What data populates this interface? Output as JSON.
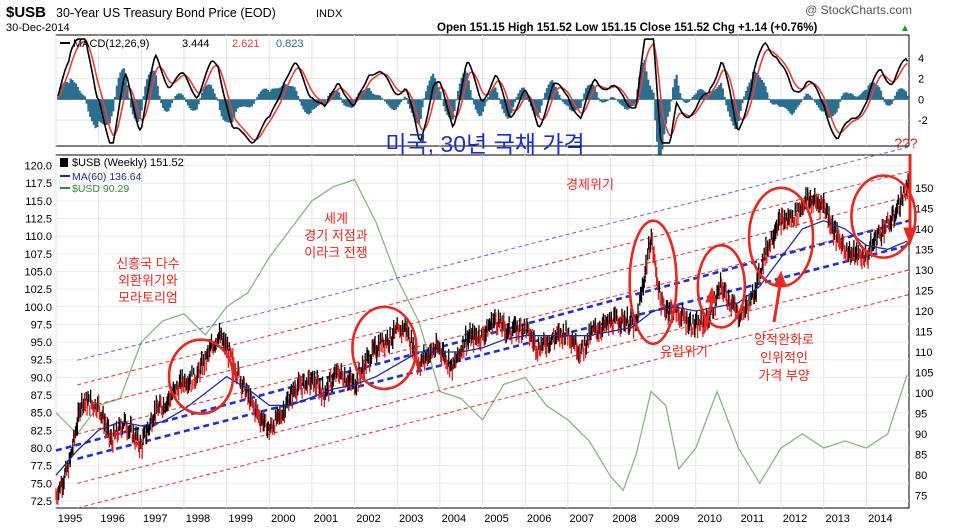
{
  "header": {
    "symbol": "$USB",
    "name": "30-Year US Treasury Bond Price (EOD)",
    "exchange": "INDX",
    "date": "30-Dec-2014",
    "watermark": "@ StockCharts.com",
    "quote": "Open 151.15  High 151.52  Low 151.15  Close 151.52  Chg +1.14 (+0.76%)",
    "quote_arrow": "▲"
  },
  "macd": {
    "label": "MACD(12,26,9)",
    "v1": "3.444",
    "v2": "2.621",
    "v3": "0.823",
    "ticks": [
      "4",
      "2",
      "0",
      "-2"
    ],
    "tick_values": [
      4,
      2,
      0,
      -2
    ],
    "color_macd": "#000000",
    "color_signal": "#e8403c",
    "color_hist": "#2c6e8f"
  },
  "price_legend": {
    "l1": "$USB (Weekly) 151.52",
    "l2": "MA(60) 136.64",
    "l3": "$USD 90.29"
  },
  "chart_data": {
    "type": "line",
    "title": "",
    "x_range": [
      1995.0,
      2015.0
    ],
    "x_ticks": [
      "1995",
      "1996",
      "1997",
      "1998",
      "1999",
      "2000",
      "2001",
      "2002",
      "2003",
      "2004",
      "2005",
      "2006",
      "2007",
      "2008",
      "2009",
      "2010",
      "2011",
      "2012",
      "2013",
      "2014"
    ],
    "x_tick_values": [
      1995,
      1996,
      1997,
      1998,
      1999,
      2000,
      2001,
      2002,
      2003,
      2004,
      2005,
      2006,
      2007,
      2008,
      2009,
      2010,
      2011,
      2012,
      2013,
      2014
    ],
    "left_axis": {
      "range": [
        71.5,
        121.5
      ],
      "ticks": [
        "120.0",
        "117.5",
        "115.0",
        "112.5",
        "110.0",
        "107.5",
        "105.0",
        "102.5",
        "100.0",
        "97.5",
        "95.0",
        "92.5",
        "90.0",
        "87.5",
        "85.0",
        "82.5",
        "80.0",
        "77.5",
        "75.0",
        "72.5"
      ],
      "tick_values": [
        120,
        117.5,
        115,
        112.5,
        110,
        107.5,
        105,
        102.5,
        100,
        97.5,
        95,
        92.5,
        90,
        87.5,
        85,
        82.5,
        80,
        77.5,
        75,
        72.5
      ]
    },
    "right_axis": {
      "range": [
        72,
        158
      ],
      "ticks": [
        "150",
        "145",
        "140",
        "135",
        "130",
        "125",
        "120",
        "115",
        "110",
        "105",
        "100",
        "95",
        "90",
        "85",
        "80",
        "75"
      ],
      "tick_values": [
        150,
        145,
        140,
        135,
        130,
        125,
        120,
        115,
        110,
        105,
        100,
        95,
        90,
        85,
        80,
        75
      ]
    },
    "series": [
      {
        "key": "usb",
        "axis": "right",
        "color": "#000000",
        "x": [
          1995.0,
          1995.3,
          1995.6,
          1996.0,
          1996.3,
          1996.6,
          1997.0,
          1997.3,
          1997.6,
          1998.0,
          1998.3,
          1998.6,
          1998.8,
          1999.0,
          1999.3,
          1999.6,
          2000.0,
          2000.3,
          2000.6,
          2001.0,
          2001.3,
          2001.6,
          2002.0,
          2002.3,
          2002.6,
          2002.9,
          2003.2,
          2003.5,
          2003.8,
          2004.0,
          2004.3,
          2004.6,
          2005.0,
          2005.3,
          2005.6,
          2006.0,
          2006.3,
          2006.6,
          2007.0,
          2007.3,
          2007.6,
          2008.0,
          2008.3,
          2008.6,
          2008.95,
          2009.2,
          2009.5,
          2010.0,
          2010.3,
          2010.6,
          2011.0,
          2011.3,
          2011.6,
          2011.9,
          2012.3,
          2012.6,
          2013.0,
          2013.3,
          2013.6,
          2014.0,
          2014.3,
          2014.6,
          2014.95
        ],
        "y": [
          75,
          82,
          98,
          97,
          88,
          93,
          87,
          95,
          98,
          103,
          104,
          110,
          114,
          111,
          104,
          97,
          91,
          95,
          101,
          103,
          100,
          105,
          102,
          108,
          112,
          114,
          116,
          107,
          110,
          111,
          106,
          113,
          114,
          118,
          115,
          116,
          111,
          113,
          115,
          110,
          115,
          117,
          118,
          116,
          138,
          121,
          120,
          116,
          118,
          126,
          119,
          122,
          133,
          141,
          143,
          147,
          146,
          138,
          134,
          133,
          139,
          142,
          150
        ],
        "label_name": "$USB (Weekly)"
      },
      {
        "key": "ma",
        "axis": "right",
        "color": "#1c2d9a",
        "x": [
          1995.0,
          1995.5,
          1996.0,
          1996.5,
          1997.0,
          1997.5,
          1998.0,
          1998.5,
          1999.0,
          1999.5,
          2000.0,
          2000.5,
          2001.0,
          2001.5,
          2002.0,
          2002.5,
          2003.0,
          2003.5,
          2004.0,
          2004.5,
          2005.0,
          2005.5,
          2006.0,
          2006.5,
          2007.0,
          2007.5,
          2008.0,
          2008.5,
          2009.0,
          2009.5,
          2010.0,
          2010.5,
          2011.0,
          2011.5,
          2012.0,
          2012.5,
          2013.0,
          2013.5,
          2014.0,
          2014.5,
          2014.95
        ],
        "y": [
          80,
          86,
          91,
          93,
          92,
          93,
          96,
          100,
          104,
          101,
          97,
          97,
          99,
          101,
          102,
          104,
          107,
          110,
          110,
          110,
          111,
          113,
          114,
          114,
          114,
          114,
          115,
          116,
          120,
          121,
          120,
          121,
          122,
          126,
          133,
          140,
          142,
          140,
          136,
          135,
          137
        ],
        "label_name": "MA(60)"
      },
      {
        "key": "usd",
        "axis": "left",
        "color": "#8fb28a",
        "x": [
          1995.0,
          1995.5,
          1996.0,
          1996.5,
          1997.0,
          1997.5,
          1998.0,
          1998.5,
          1999.0,
          1999.5,
          2000.0,
          2000.5,
          2001.0,
          2001.5,
          2002.0,
          2002.5,
          2003.0,
          2003.5,
          2004.0,
          2004.5,
          2005.0,
          2005.5,
          2006.0,
          2006.5,
          2007.0,
          2007.5,
          2008.0,
          2008.3,
          2008.6,
          2008.95,
          2009.3,
          2009.6,
          2010.0,
          2010.5,
          2011.0,
          2011.5,
          2012.0,
          2012.5,
          2013.0,
          2013.5,
          2014.0,
          2014.5,
          2014.95
        ],
        "y": [
          85,
          82,
          86,
          87,
          95,
          98,
          99,
          96,
          100,
          102,
          107,
          111,
          115,
          117,
          118,
          112,
          104,
          98,
          88,
          87,
          84,
          89,
          90,
          86,
          84,
          81,
          76,
          74,
          79,
          88,
          86,
          77,
          80,
          88,
          80,
          75,
          80,
          82,
          80,
          81,
          80,
          82,
          90.29
        ],
        "label_name": "$USD"
      }
    ],
    "channel_lines": [
      {
        "x": [
          1995.5,
          2015.0
        ],
        "y": [
          108,
          160
        ],
        "color": "#6677dd",
        "style": "thin-dash"
      },
      {
        "x": [
          1995.5,
          2015.0
        ],
        "y": [
          102,
          154
        ],
        "color": "#e04444",
        "style": "thin-dash"
      },
      {
        "x": [
          1995.5,
          2015.0
        ],
        "y": [
          96,
          148
        ],
        "color": "#e04444",
        "style": "thin-dash"
      },
      {
        "x": [
          1995.5,
          2015.0
        ],
        "y": [
          90,
          142
        ],
        "color": "#e04444",
        "style": "thin-dash"
      },
      {
        "x": [
          1995.5,
          2015.0
        ],
        "y": [
          84,
          136
        ],
        "color": "#1f2fd8",
        "style": "thick-dash"
      },
      {
        "x": [
          1995.5,
          2015.0
        ],
        "y": [
          78,
          130
        ],
        "color": "#e04444",
        "style": "thin-dash"
      },
      {
        "x": [
          1995.5,
          2015.0
        ],
        "y": [
          72,
          124
        ],
        "color": "#e04444",
        "style": "thin-dash"
      },
      {
        "x": [
          1995.0,
          2015.0
        ],
        "y": [
          86,
          142
        ],
        "color": "#1f2fd8",
        "style": "thick-dash"
      }
    ],
    "ellipses": [
      {
        "cx": 1998.4,
        "cy": 104,
        "rx": 0.75,
        "ry": 9
      },
      {
        "cx": 2002.7,
        "cy": 111,
        "rx": 0.75,
        "ry": 10
      },
      {
        "cx": 2009.0,
        "cy": 127,
        "rx": 0.55,
        "ry": 15
      },
      {
        "cx": 2010.6,
        "cy": 126,
        "rx": 0.55,
        "ry": 10
      },
      {
        "cx": 2012.0,
        "cy": 138,
        "rx": 0.75,
        "ry": 12
      },
      {
        "cx": 2014.4,
        "cy": 143,
        "rx": 0.75,
        "ry": 10
      }
    ]
  },
  "annotations": {
    "main_title": "미국, 30년 국채 가격",
    "a1_lines": [
      "신흥국 다수",
      "외환위기와",
      "모라토리엄"
    ],
    "a2_lines": [
      "세계",
      "경기 저점과",
      "이라크 전쟁"
    ],
    "a3": "경제위기",
    "a4": "유럽위기",
    "a5_lines": [
      "양적완화로",
      "인위적인",
      "가격 부양"
    ],
    "a6": "???"
  },
  "colors": {
    "annotation_red": "#e8281e",
    "title_blue": "#1a2fd0",
    "grid": "#e2e2e2",
    "axis_text": "#000000"
  }
}
